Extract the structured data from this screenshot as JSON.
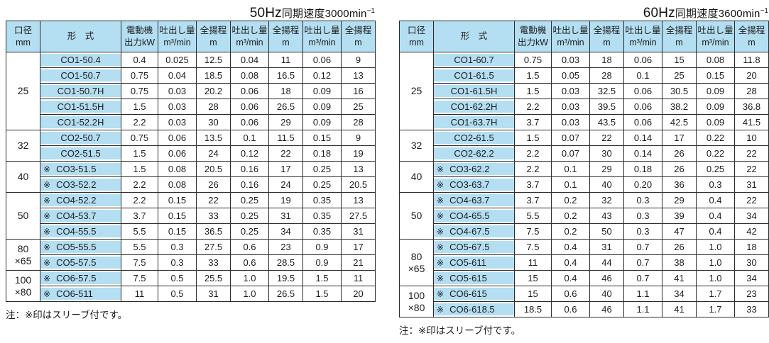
{
  "colors": {
    "cell_blue": "#b4def2",
    "border": "#2b2b2b",
    "text": "#1c1c1c"
  },
  "sleeve_mark": "※",
  "tables": [
    {
      "id": "50hz",
      "title": {
        "freq": "50Hz",
        "label": "同期速度3000min",
        "sup": "−1"
      },
      "note": "注：※印はスリーブ付です。",
      "headers": {
        "bore": [
          "口径",
          "mm"
        ],
        "model": [
          "形　式"
        ],
        "motor": [
          "電動機",
          "出力kW"
        ],
        "flow": [
          "吐出し量",
          "m³/min"
        ],
        "head": [
          "全揚程",
          "m"
        ]
      },
      "groups": [
        {
          "bore": [
            "25"
          ],
          "rows": [
            {
              "model": "CO1-50.4",
              "sleeve": false,
              "kw": "0.4",
              "values": [
                "0.025",
                "12.5",
                "0.04",
                "11",
                "0.06",
                "9"
              ]
            },
            {
              "model": "CO1-50.7",
              "sleeve": false,
              "kw": "0.75",
              "values": [
                "0.04",
                "18.5",
                "0.08",
                "16.5",
                "0.12",
                "13"
              ]
            },
            {
              "model": "CO1-50.7H",
              "sleeve": false,
              "kw": "0.75",
              "values": [
                "0.03",
                "20.2",
                "0.06",
                "18",
                "0.09",
                "16"
              ]
            },
            {
              "model": "CO1-51.5H",
              "sleeve": false,
              "kw": "1.5",
              "values": [
                "0.03",
                "28",
                "0.06",
                "26.5",
                "0.09",
                "25"
              ]
            },
            {
              "model": "CO1-52.2H",
              "sleeve": false,
              "kw": "2.2",
              "values": [
                "0.03",
                "30",
                "0.06",
                "29",
                "0.09",
                "28"
              ]
            }
          ]
        },
        {
          "bore": [
            "32"
          ],
          "rows": [
            {
              "model": "CO2-50.7",
              "sleeve": false,
              "kw": "0.75",
              "values": [
                "0.06",
                "13.5",
                "0.1",
                "11.5",
                "0.15",
                "9"
              ]
            },
            {
              "model": "CO2-51.5",
              "sleeve": false,
              "kw": "1.5",
              "values": [
                "0.06",
                "24",
                "0.12",
                "22",
                "0.18",
                "19"
              ]
            }
          ]
        },
        {
          "bore": [
            "40"
          ],
          "rows": [
            {
              "model": "CO3-51.5",
              "sleeve": true,
              "kw": "1.5",
              "values": [
                "0.08",
                "20.5",
                "0.16",
                "17",
                "0.25",
                "13"
              ]
            },
            {
              "model": "CO3-52.2",
              "sleeve": true,
              "kw": "2.2",
              "values": [
                "0.08",
                "26",
                "0.16",
                "24",
                "0.25",
                "20.5"
              ]
            }
          ]
        },
        {
          "bore": [
            "50"
          ],
          "rows": [
            {
              "model": "CO4-52.2",
              "sleeve": true,
              "kw": "2.2",
              "values": [
                "0.15",
                "22",
                "0.25",
                "19",
                "0.35",
                "13"
              ]
            },
            {
              "model": "CO4-53.7",
              "sleeve": true,
              "kw": "3.7",
              "values": [
                "0.15",
                "33",
                "0.25",
                "31",
                "0.35",
                "27.5"
              ]
            },
            {
              "model": "CO4-55.5",
              "sleeve": true,
              "kw": "5.5",
              "values": [
                "0.15",
                "36.5",
                "0.25",
                "34",
                "0.35",
                "31"
              ]
            }
          ]
        },
        {
          "bore": [
            "80",
            "×65"
          ],
          "rows": [
            {
              "model": "CO5-55.5",
              "sleeve": true,
              "kw": "5.5",
              "values": [
                "0.3",
                "27.5",
                "0.6",
                "23",
                "0.9",
                "17"
              ]
            },
            {
              "model": "CO5-57.5",
              "sleeve": true,
              "kw": "7.5",
              "values": [
                "0.3",
                "33",
                "0.6",
                "28.5",
                "0.9",
                "21"
              ]
            }
          ]
        },
        {
          "bore": [
            "100",
            "×80"
          ],
          "rows": [
            {
              "model": "CO6-57.5",
              "sleeve": true,
              "kw": "7.5",
              "values": [
                "0.5",
                "25.5",
                "1.0",
                "19.5",
                "1.5",
                "11"
              ]
            },
            {
              "model": "CO6-511",
              "sleeve": true,
              "kw": "11",
              "values": [
                "0.5",
                "31",
                "1.0",
                "26.5",
                "1.5",
                "20"
              ]
            }
          ]
        }
      ]
    },
    {
      "id": "60hz",
      "title": {
        "freq": "60Hz",
        "label": "同期速度3600min",
        "sup": "−1"
      },
      "note": "注：※印はスリーブ付です。",
      "headers": {
        "bore": [
          "口径",
          "mm"
        ],
        "model": [
          "形　式"
        ],
        "motor": [
          "電動機",
          "出力kW"
        ],
        "flow": [
          "吐出し量",
          "m³/min"
        ],
        "head": [
          "全揚程",
          "m"
        ]
      },
      "groups": [
        {
          "bore": [
            "25"
          ],
          "rows": [
            {
              "model": "CO1-60.7",
              "sleeve": false,
              "kw": "0.75",
              "values": [
                "0.03",
                "18",
                "0.06",
                "15",
                "0.08",
                "11.8"
              ]
            },
            {
              "model": "CO1-61.5",
              "sleeve": false,
              "kw": "1.5",
              "values": [
                "0.05",
                "28",
                "0.1",
                "25",
                "0.15",
                "20"
              ]
            },
            {
              "model": "CO1-61.5H",
              "sleeve": false,
              "kw": "1.5",
              "values": [
                "0.03",
                "32.5",
                "0.06",
                "30.5",
                "0.09",
                "28"
              ]
            },
            {
              "model": "CO1-62.2H",
              "sleeve": false,
              "kw": "2.2",
              "values": [
                "0.03",
                "39.5",
                "0.06",
                "38.2",
                "0.09",
                "36.8"
              ]
            },
            {
              "model": "CO1-63.7H",
              "sleeve": false,
              "kw": "3.7",
              "values": [
                "0.03",
                "43.5",
                "0.06",
                "42.5",
                "0.09",
                "41.5"
              ]
            }
          ]
        },
        {
          "bore": [
            "32"
          ],
          "rows": [
            {
              "model": "CO2-61.5",
              "sleeve": false,
              "kw": "1.5",
              "values": [
                "0.07",
                "22",
                "0.14",
                "17",
                "0.22",
                "10"
              ]
            },
            {
              "model": "CO2-62.2",
              "sleeve": false,
              "kw": "2.2",
              "values": [
                "0.07",
                "30",
                "0.14",
                "26",
                "0.22",
                "22"
              ]
            }
          ]
        },
        {
          "bore": [
            "40"
          ],
          "rows": [
            {
              "model": "CO3-62.2",
              "sleeve": true,
              "kw": "2.2",
              "values": [
                "0.1",
                "29",
                "0.18",
                "26",
                "0.25",
                "22"
              ]
            },
            {
              "model": "CO3-63.7",
              "sleeve": true,
              "kw": "3.7",
              "values": [
                "0.1",
                "40",
                "0.20",
                "36",
                "0.3",
                "31"
              ]
            }
          ]
        },
        {
          "bore": [
            "50"
          ],
          "rows": [
            {
              "model": "CO4-63.7",
              "sleeve": true,
              "kw": "3.7",
              "values": [
                "0.2",
                "32",
                "0.3",
                "29",
                "0.4",
                "22"
              ]
            },
            {
              "model": "CO4-65.5",
              "sleeve": true,
              "kw": "5.5",
              "values": [
                "0.2",
                "43",
                "0.3",
                "39",
                "0.4",
                "34"
              ]
            },
            {
              "model": "CO4-67.5",
              "sleeve": true,
              "kw": "7.5",
              "values": [
                "0.2",
                "50",
                "0.3",
                "47",
                "0.4",
                "42"
              ]
            }
          ]
        },
        {
          "bore": [
            "80",
            "×65"
          ],
          "rows": [
            {
              "model": "CO5-67.5",
              "sleeve": true,
              "kw": "7.5",
              "values": [
                "0.4",
                "31",
                "0.7",
                "26",
                "1.0",
                "18"
              ]
            },
            {
              "model": "CO5-611",
              "sleeve": true,
              "kw": "11",
              "values": [
                "0.4",
                "44",
                "0.7",
                "38",
                "1.0",
                "30"
              ]
            },
            {
              "model": "CO5-615",
              "sleeve": true,
              "kw": "15",
              "values": [
                "0.4",
                "46",
                "0.7",
                "41",
                "1.0",
                "34"
              ]
            }
          ]
        },
        {
          "bore": [
            "100",
            "×80"
          ],
          "rows": [
            {
              "model": "CO6-615",
              "sleeve": true,
              "kw": "15",
              "values": [
                "0.6",
                "40",
                "1.1",
                "34",
                "1.7",
                "23"
              ]
            },
            {
              "model": "CO6-618.5",
              "sleeve": true,
              "kw": "18.5",
              "values": [
                "0.6",
                "46",
                "1.1",
                "41",
                "1.7",
                "33"
              ]
            }
          ]
        }
      ]
    }
  ]
}
